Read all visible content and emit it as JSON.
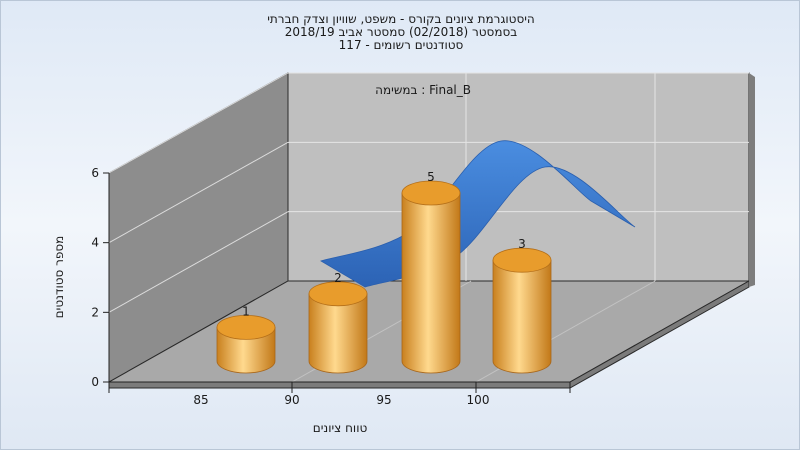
{
  "chart_data": {
    "type": "bar",
    "title_lines": [
      "היסטוגרמת ציונים בקורס - משפט, שוויון וצדק חברתי",
      "בסמסטר  (02/2018)  סמסטר אביב 2018/19",
      "סטודנטים רשומים - 117"
    ],
    "annotation": "במשימה : Final_B",
    "xlabel": "טווח ציונים",
    "ylabel": "מספר סטודנטים",
    "categories": [
      "85",
      "90",
      "95",
      "100"
    ],
    "values": [
      1,
      2,
      5,
      3
    ],
    "data_labels": [
      "1",
      "2",
      "5",
      "3"
    ],
    "x_ticks": [
      "85",
      "90",
      "95",
      "100"
    ],
    "y_ticks": [
      "0",
      "2",
      "4",
      "6"
    ],
    "ylim": [
      0,
      6
    ],
    "series": [
      {
        "kind": "bars",
        "color": "#e8a33a"
      },
      {
        "kind": "smoothed-line",
        "color": "#2f6fc5",
        "values": [
          1,
          2,
          5,
          3
        ]
      }
    ],
    "grid": true,
    "style": "3d"
  }
}
